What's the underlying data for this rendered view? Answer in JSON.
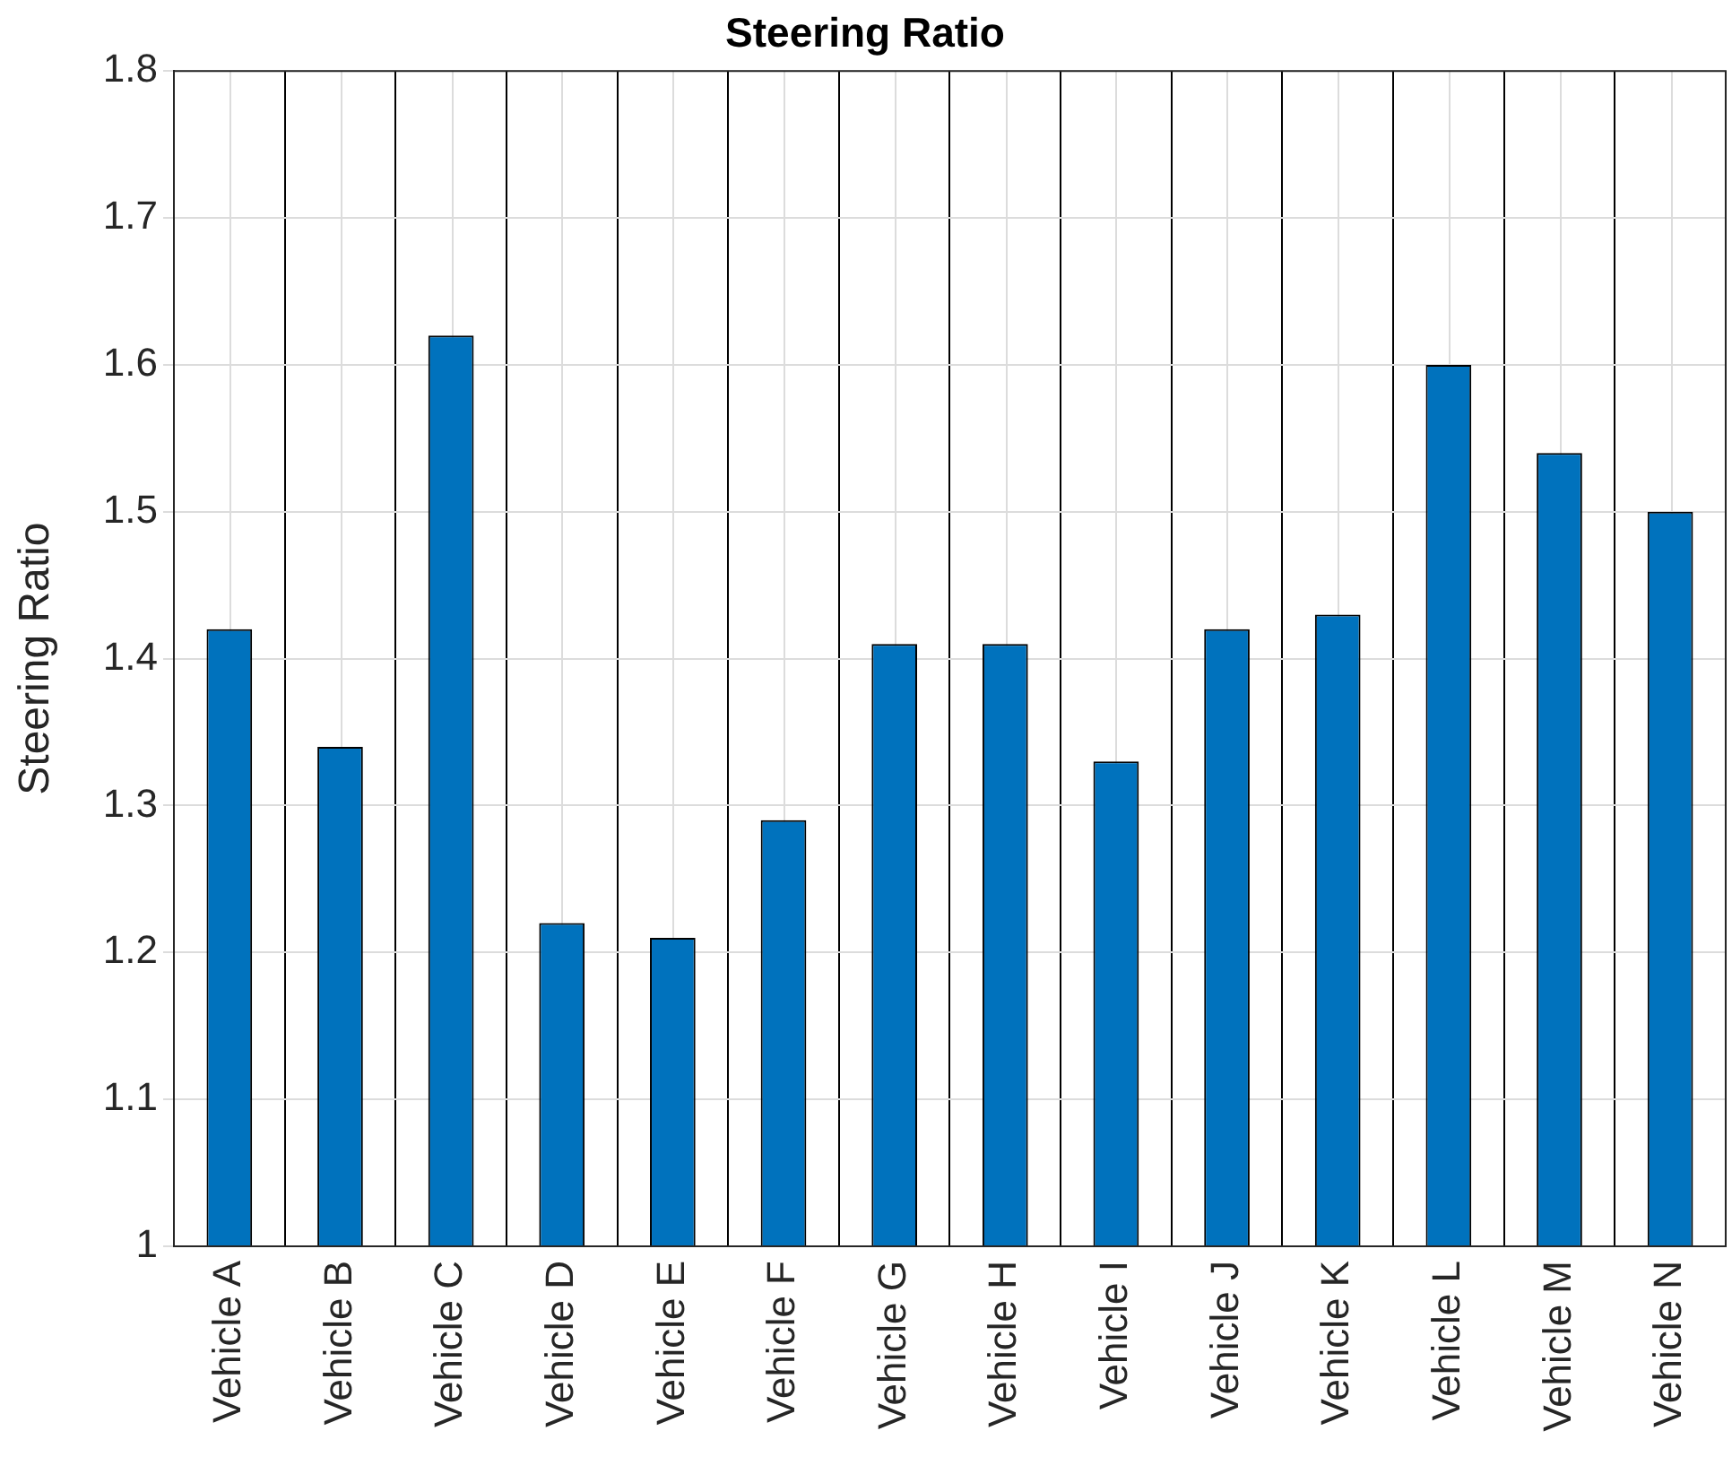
{
  "chart_data": {
    "type": "bar",
    "title": "Steering Ratio",
    "ylabel": "Steering Ratio",
    "categories": [
      "Vehicle A",
      "Vehicle B",
      "Vehicle C",
      "Vehicle D",
      "Vehicle E",
      "Vehicle F",
      "Vehicle G",
      "Vehicle H",
      "Vehicle I",
      "Vehicle J",
      "Vehicle K",
      "Vehicle L",
      "Vehicle M",
      "Vehicle N"
    ],
    "values": [
      1.42,
      1.34,
      1.62,
      1.22,
      1.21,
      1.29,
      1.41,
      1.41,
      1.33,
      1.42,
      1.43,
      1.6,
      1.54,
      1.5
    ],
    "color": "#0072bd",
    "ylim": [
      1,
      1.8
    ],
    "yticks": [
      1,
      1.1,
      1.2,
      1.3,
      1.4,
      1.5,
      1.6,
      1.7,
      1.8
    ],
    "grid": true,
    "legend": false
  }
}
